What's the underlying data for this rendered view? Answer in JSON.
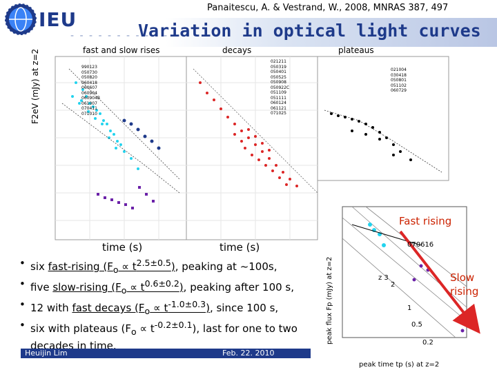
{
  "header": {
    "citation": "Panaitescu, A. & Vestrand, W., 2008, MNRAS 387, 497",
    "logo_text": "IEU",
    "title": "Variation in optical light curves"
  },
  "panels": {
    "rises_title": "fast and slow rises",
    "decays_title": "decays",
    "plateaus_title": "plateaus",
    "ylabel": "F2eV (mJy) at z=2",
    "xlabel": "time (s)",
    "rises_legend": [
      "990123",
      "050730",
      "050820",
      "060418",
      "060607",
      "060904",
      "060904B",
      "061007",
      "070411",
      "071010"
    ],
    "decays_legend": [
      "021211",
      "050319",
      "050401",
      "050525",
      "050908",
      "050922C",
      "051109",
      "051111",
      "060124",
      "061121",
      "071025"
    ],
    "plateaus_legend": [
      "021004",
      "030418",
      "050801",
      "051102",
      "060729"
    ]
  },
  "inset": {
    "label_fast": "Fast rising",
    "label_slow_1": "Slow",
    "label_slow_2": "rising",
    "burst": "070616",
    "z_label": "z 3",
    "ylabel": "peak flux Fp (mJy) at z=2",
    "xlabel": "peak time tp (s) at z=2",
    "curve_labels": [
      "2",
      "1",
      "0.5",
      "0.2"
    ]
  },
  "bullets": [
    {
      "pre": "six ",
      "u": "fast-rising (F",
      "sub": "o",
      "mid": " ∝ t",
      "sup": "2.5±0.5",
      "post_u": ")",
      "rest": ", peaking at ~100s,"
    },
    {
      "pre": "five ",
      "u": "slow-rising (F",
      "sub": "o",
      "mid": " ∝ t",
      "sup": "0.6±0.2",
      "post_u": ")",
      "rest": ", peaking after 100 s,"
    },
    {
      "pre": "12 with ",
      "u": "fast decays (F",
      "sub": "o",
      "mid": " ∝ t",
      "sup": "-1.0±0.3",
      "post_u": ")",
      "rest": ", since 100 s,"
    },
    {
      "pre": "six with plateaus (F",
      "u": "",
      "sub": "o",
      "mid": " ∝ t",
      "sup": "-0.2±0.1",
      "post_u": "",
      "rest": "), last for one to two decades in time."
    }
  ],
  "footer": {
    "author": "Heuijin Lim",
    "date": "Feb. 22. 2010"
  },
  "colors": {
    "navy": "#1e3a8a",
    "cyan": "#22d3ee",
    "purple": "#6b21a8",
    "red": "#dc2626",
    "black": "#000000"
  }
}
